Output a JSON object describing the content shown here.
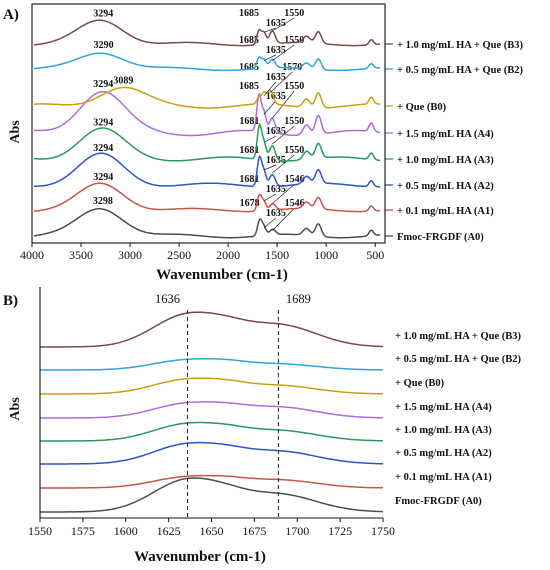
{
  "chart_data": [
    {
      "panel_label": "A)",
      "type": "line",
      "xlabel": "Wavenumber (cm-1)",
      "ylabel": "Abs",
      "x_reversed": true,
      "xlim": [
        4000,
        400
      ],
      "xticks": [
        4000,
        3500,
        3000,
        2500,
        2000,
        1500,
        1000,
        500
      ],
      "grid": false,
      "legend_placement": "right, label beside each trace",
      "series": [
        {
          "name": "Fmoc-FRGDF (A0)",
          "color": "#4d4d4d",
          "peaks": [
            {
              "x": 3298,
              "rel": 1.0
            },
            {
              "x": 1678,
              "rel": 0.55
            },
            {
              "x": 1635,
              "rel": 0.3
            },
            {
              "x": 1546,
              "rel": 0.2
            }
          ],
          "annotations": [
            {
              "text": "3298",
              "x": 3298
            },
            {
              "text": "1678",
              "x": 1678
            },
            {
              "text": "1635",
              "x": 1635
            },
            {
              "text": "1546",
              "x": 1546
            }
          ]
        },
        {
          "name": "+ 0.1 mg/mL HA (A1)",
          "color": "#c9554a",
          "peaks": [
            {
              "x": 3294,
              "rel": 1.0
            },
            {
              "x": 1681,
              "rel": 0.6
            },
            {
              "x": 1635,
              "rel": 0.35
            },
            {
              "x": 1546,
              "rel": 0.25
            }
          ],
          "annotations": [
            {
              "text": "3294",
              "x": 3294
            },
            {
              "text": "1681",
              "x": 1681
            },
            {
              "text": "1635",
              "x": 1635
            },
            {
              "text": "1546",
              "x": 1546
            }
          ]
        },
        {
          "name": "+ 0.5 mg/mL HA (A2)",
          "color": "#2e54c9",
          "peaks": [
            {
              "x": 3294,
              "rel": 1.0
            },
            {
              "x": 1681,
              "rel": 0.95
            },
            {
              "x": 1635,
              "rel": 0.5
            },
            {
              "x": 1550,
              "rel": 0.4
            }
          ],
          "annotations": [
            {
              "text": "3294",
              "x": 3294
            },
            {
              "text": "1681",
              "x": 1681
            },
            {
              "text": "1635",
              "x": 1635
            },
            {
              "text": "1550",
              "x": 1550
            }
          ]
        },
        {
          "name": "+ 1.0 mg/mL HA (A3)",
          "color": "#2a9a5a",
          "peaks": [
            {
              "x": 3294,
              "rel": 0.9
            },
            {
              "x": 1681,
              "rel": 1.0
            },
            {
              "x": 1635,
              "rel": 0.5
            },
            {
              "x": 1550,
              "rel": 0.45
            }
          ],
          "annotations": [
            {
              "text": "3294",
              "x": 3294
            },
            {
              "text": "1681",
              "x": 1681
            },
            {
              "text": "1635",
              "x": 1635
            },
            {
              "text": "1550",
              "x": 1550
            }
          ]
        },
        {
          "name": "+ 1.5 mg/mL HA (A4)",
          "color": "#b06ae0",
          "peaks": [
            {
              "x": 3294,
              "rel": 1.0
            },
            {
              "x": 1685,
              "rel": 0.85
            },
            {
              "x": 1635,
              "rel": 0.45
            },
            {
              "x": 1550,
              "rel": 0.35
            }
          ],
          "annotations": [
            {
              "text": "3294",
              "x": 3294
            },
            {
              "text": "1685",
              "x": 1685
            },
            {
              "text": "1635",
              "x": 1635
            },
            {
              "text": "1550",
              "x": 1550
            }
          ]
        },
        {
          "name": "+ Que (B0)",
          "color": "#c9a010",
          "peaks": [
            {
              "x": 3089,
              "rel": 0.55
            },
            {
              "x": 1685,
              "rel": 0.2
            },
            {
              "x": 1635,
              "rel": 0.3
            },
            {
              "x": 1570,
              "rel": 0.4
            }
          ],
          "annotations": [
            {
              "text": "3089",
              "x": 3089
            },
            {
              "text": "1685",
              "x": 1685
            },
            {
              "text": "1635",
              "x": 1635
            },
            {
              "text": "1570",
              "x": 1570
            }
          ]
        },
        {
          "name": "+ 0.5 mg/mL HA + Que (B2)",
          "color": "#2fa6d8",
          "peaks": [
            {
              "x": 3290,
              "rel": 0.7
            },
            {
              "x": 1685,
              "rel": 0.45
            },
            {
              "x": 1635,
              "rel": 0.35
            },
            {
              "x": 1550,
              "rel": 0.35
            }
          ],
          "annotations": [
            {
              "text": "3290",
              "x": 3290
            },
            {
              "text": "1685",
              "x": 1685
            },
            {
              "text": "1635",
              "x": 1635
            },
            {
              "text": "1550",
              "x": 1550
            }
          ]
        },
        {
          "name": "+ 1.0 mg/mL HA + Que (B3)",
          "color": "#7a4a44",
          "peaks": [
            {
              "x": 3294,
              "rel": 0.9
            },
            {
              "x": 1685,
              "rel": 0.55
            },
            {
              "x": 1635,
              "rel": 0.45
            },
            {
              "x": 1550,
              "rel": 0.5
            }
          ],
          "annotations": [
            {
              "text": "3294",
              "x": 3294
            },
            {
              "text": "1685",
              "x": 1685
            },
            {
              "text": "1635",
              "x": 1635
            },
            {
              "text": "1550",
              "x": 1550
            }
          ]
        }
      ]
    },
    {
      "panel_label": "B)",
      "type": "line",
      "xlabel": "Wavenumber (cm-1)",
      "ylabel": "Abs",
      "xlim": [
        1550,
        1750
      ],
      "xticks": [
        1550,
        1575,
        1600,
        1625,
        1650,
        1675,
        1700,
        1725,
        1750
      ],
      "grid": false,
      "reference_lines": [
        {
          "x": 1636,
          "label": "1636"
        },
        {
          "x": 1689,
          "label": "1689"
        }
      ],
      "legend_placement": "right, label beside each trace",
      "series": [
        {
          "name": "Fmoc-FRGDF (A0)",
          "color": "#4d4d4d",
          "peaks": [
            {
              "x": 1636,
              "rel": 1.0
            },
            {
              "x": 1689,
              "rel": 0.55
            }
          ]
        },
        {
          "name": "+ 0.1 mg/mL HA (A1)",
          "color": "#c9554a",
          "peaks": [
            {
              "x": 1636,
              "rel": 0.55
            },
            {
              "x": 1689,
              "rel": 0.4
            }
          ]
        },
        {
          "name": "+ 0.5 mg/mL HA (A2)",
          "color": "#2e54c9",
          "peaks": [
            {
              "x": 1636,
              "rel": 0.7
            },
            {
              "x": 1689,
              "rel": 0.45
            }
          ]
        },
        {
          "name": "+ 1.0 mg/mL HA (A3)",
          "color": "#2a9a5a",
          "peaks": [
            {
              "x": 1636,
              "rel": 0.65
            },
            {
              "x": 1689,
              "rel": 0.4
            }
          ]
        },
        {
          "name": "+ 1.5 mg/mL HA (A4)",
          "color": "#b06ae0",
          "peaks": [
            {
              "x": 1636,
              "rel": 0.6
            },
            {
              "x": 1689,
              "rel": 0.45
            }
          ]
        },
        {
          "name": "+ Que (B0)",
          "color": "#c9a010",
          "peaks": [
            {
              "x": 1636,
              "rel": 0.6
            },
            {
              "x": 1689,
              "rel": 0.35
            }
          ]
        },
        {
          "name": "+ 0.5 mg/mL HA + Que (B2)",
          "color": "#2fa6d8",
          "peaks": [
            {
              "x": 1636,
              "rel": 0.5
            },
            {
              "x": 1689,
              "rel": 0.3
            }
          ]
        },
        {
          "name": "+ 1.0 mg/mL HA + Que (B3)",
          "color": "#7a4a44",
          "peaks": [
            {
              "x": 1636,
              "rel": 0.8
            },
            {
              "x": 1689,
              "rel": 0.55
            }
          ]
        }
      ]
    }
  ]
}
